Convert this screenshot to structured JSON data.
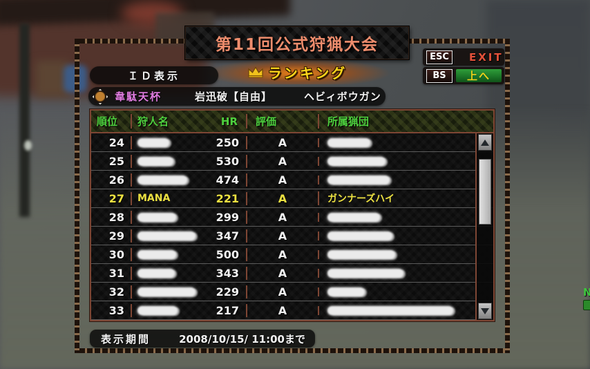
{
  "page": {
    "title_plate": "第11回公式狩猟大会",
    "section_label": "ランキング"
  },
  "controls": {
    "esc_key": "ESC",
    "esc_label": "EXIT",
    "bs_key": "BS",
    "bs_label": "上へ",
    "id_button": "ＩＤ表示"
  },
  "tournament": {
    "cup": "韋駄天杯",
    "quest": "岩迅破【自由】",
    "weapon": "ヘビィボウガン"
  },
  "table": {
    "headers": {
      "rank": "順位",
      "hunter": "狩人名",
      "hr": "HR",
      "grade": "評価",
      "guild": "所属猟団"
    },
    "rows": [
      {
        "rank": "24",
        "name": "",
        "name_censored": true,
        "name_w": 46,
        "hr": "250",
        "grade": "A",
        "guild": "",
        "guild_censored": true,
        "guild_w": 62,
        "highlight": false
      },
      {
        "rank": "25",
        "name": "",
        "name_censored": true,
        "name_w": 52,
        "hr": "530",
        "grade": "A",
        "guild": "",
        "guild_censored": true,
        "guild_w": 84,
        "highlight": false
      },
      {
        "rank": "26",
        "name": "",
        "name_censored": true,
        "name_w": 72,
        "hr": "474",
        "grade": "A",
        "guild": "",
        "guild_censored": true,
        "guild_w": 90,
        "highlight": false
      },
      {
        "rank": "27",
        "name": "MANA",
        "name_censored": false,
        "name_w": 0,
        "hr": "221",
        "grade": "A",
        "guild": "ガンナーズハイ",
        "guild_censored": false,
        "guild_w": 0,
        "highlight": true
      },
      {
        "rank": "28",
        "name": "",
        "name_censored": true,
        "name_w": 56,
        "hr": "299",
        "grade": "A",
        "guild": "",
        "guild_censored": true,
        "guild_w": 76,
        "highlight": false
      },
      {
        "rank": "29",
        "name": "",
        "name_censored": true,
        "name_w": 84,
        "hr": "347",
        "grade": "A",
        "guild": "",
        "guild_censored": true,
        "guild_w": 94,
        "highlight": false
      },
      {
        "rank": "30",
        "name": "",
        "name_censored": true,
        "name_w": 56,
        "hr": "500",
        "grade": "A",
        "guild": "",
        "guild_censored": true,
        "guild_w": 98,
        "highlight": false
      },
      {
        "rank": "31",
        "name": "",
        "name_censored": true,
        "name_w": 54,
        "hr": "343",
        "grade": "A",
        "guild": "",
        "guild_censored": true,
        "guild_w": 110,
        "highlight": false
      },
      {
        "rank": "32",
        "name": "",
        "name_censored": true,
        "name_w": 84,
        "hr": "229",
        "grade": "A",
        "guild": "",
        "guild_censored": true,
        "guild_w": 54,
        "highlight": false
      },
      {
        "rank": "33",
        "name": "",
        "name_censored": true,
        "name_w": 58,
        "hr": "217",
        "grade": "A",
        "guild": "",
        "guild_censored": true,
        "guild_w": 182,
        "highlight": false
      }
    ]
  },
  "footer": {
    "label": "表示期間",
    "value": "2008/10/15/ 11:00まで"
  },
  "minimap": {
    "compass": "N"
  },
  "colors": {
    "title_text": "#ef8d6d",
    "ranking_text": "#ffd81a",
    "banner_glow": "#f38212",
    "header_green": "#4ed13e",
    "highlight_yellow": "#ece141",
    "cup_pink": "#e07ce0",
    "exit_red": "#e4513a",
    "bs_green": "#1a7226",
    "frame_orange": "#7e4634"
  }
}
